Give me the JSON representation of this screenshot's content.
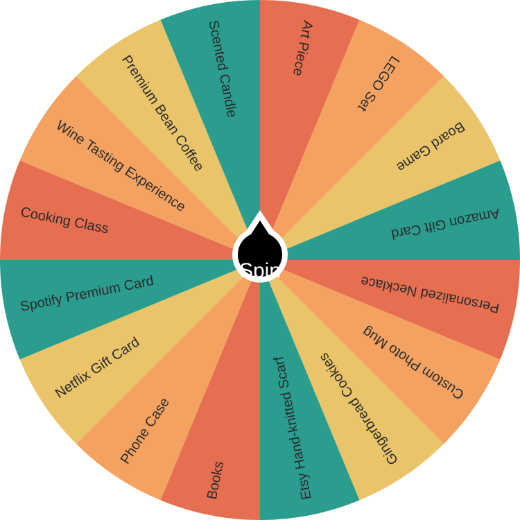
{
  "wheel": {
    "colors": [
      "#E76F51",
      "#F4A261",
      "#E9C46A",
      "#2A9D8F"
    ],
    "segments": [
      "Art Piece",
      "LEGO Set",
      "Board Game",
      "Amazon Gift Card",
      "Personalized Necklace",
      "Custom Photo Mug",
      "Gingerbread Cookies",
      "Etsy Hand-knitted Scarf",
      "Books",
      "Phone Case",
      "Netflix Gift Card",
      "Spotify Premium Card",
      "Cooking Class",
      "Wine Tasting Experience",
      "Premium Bean Coffee",
      "Scented Candle"
    ]
  },
  "spin_button": {
    "label": "Spin"
  }
}
